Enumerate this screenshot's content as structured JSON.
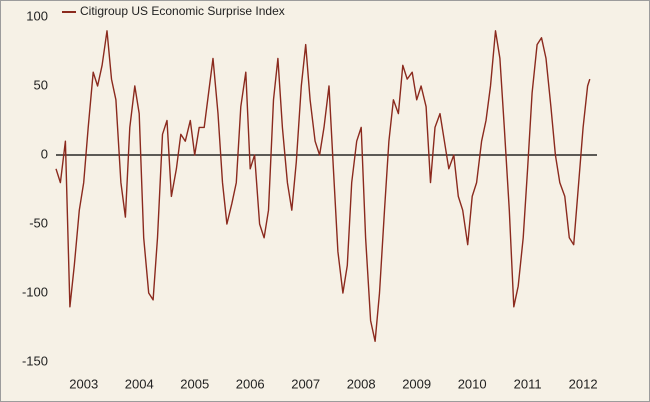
{
  "chart_data": {
    "type": "line",
    "x": [
      2003,
      2003.08,
      2003.17,
      2003.25,
      2003.33,
      2003.42,
      2003.5,
      2003.58,
      2003.67,
      2003.75,
      2003.83,
      2003.92,
      2004,
      2004.08,
      2004.17,
      2004.25,
      2004.33,
      2004.42,
      2004.5,
      2004.58,
      2004.67,
      2004.75,
      2004.83,
      2004.92,
      2005,
      2005.08,
      2005.17,
      2005.25,
      2005.33,
      2005.42,
      2005.5,
      2005.58,
      2005.67,
      2005.75,
      2005.83,
      2005.92,
      2006,
      2006.08,
      2006.17,
      2006.25,
      2006.33,
      2006.42,
      2006.5,
      2006.58,
      2006.67,
      2006.75,
      2006.83,
      2006.92,
      2007,
      2007.08,
      2007.17,
      2007.25,
      2007.33,
      2007.42,
      2007.5,
      2007.58,
      2007.67,
      2007.75,
      2007.83,
      2007.92,
      2008,
      2008.08,
      2008.17,
      2008.25,
      2008.33,
      2008.42,
      2008.5,
      2008.58,
      2008.67,
      2008.75,
      2008.83,
      2008.92,
      2009,
      2009.08,
      2009.17,
      2009.25,
      2009.33,
      2009.42,
      2009.5,
      2009.58,
      2009.67,
      2009.75,
      2009.83,
      2009.92,
      2010,
      2010.08,
      2010.17,
      2010.25,
      2010.33,
      2010.42,
      2010.5,
      2010.58,
      2010.67,
      2010.75,
      2010.83,
      2010.92,
      2011,
      2011.08,
      2011.17,
      2011.25,
      2011.33,
      2011.42,
      2011.5,
      2011.58,
      2011.67,
      2011.75,
      2011.83,
      2011.92,
      2012,
      2012.08,
      2012.17,
      2012.25,
      2012.33,
      2012.42,
      2012.5,
      2012.58,
      2012.62
    ],
    "series": [
      {
        "name": "Citigroup US Economic Surprise Index",
        "color": "#8b2a1e",
        "values": [
          -10,
          -20,
          10,
          -110,
          -80,
          -40,
          -20,
          20,
          60,
          50,
          65,
          90,
          55,
          40,
          -20,
          -45,
          20,
          50,
          30,
          -60,
          -100,
          -105,
          -60,
          15,
          25,
          -30,
          -10,
          15,
          10,
          25,
          0,
          20,
          20,
          45,
          70,
          30,
          -20,
          -50,
          -35,
          -20,
          35,
          60,
          -10,
          0,
          -50,
          -60,
          -40,
          40,
          70,
          20,
          -20,
          -40,
          -5,
          50,
          80,
          40,
          10,
          0,
          20,
          50,
          -10,
          -70,
          -100,
          -80,
          -20,
          10,
          20,
          -60,
          -120,
          -135,
          -100,
          -40,
          10,
          40,
          30,
          65,
          55,
          60,
          40,
          50,
          35,
          -20,
          20,
          30,
          10,
          -10,
          0,
          -30,
          -40,
          -65,
          -30,
          -20,
          10,
          25,
          50,
          90,
          70,
          20,
          -40,
          -110,
          -95,
          -60,
          -10,
          45,
          80,
          85,
          70,
          35,
          0,
          -20,
          -30,
          -60,
          -65,
          -20,
          20,
          50,
          55
        ]
      }
    ],
    "xlim": [
      2003,
      2012.75
    ],
    "xticks": [
      {
        "value": 2003.5,
        "label": "2003"
      },
      {
        "value": 2004.5,
        "label": "2004"
      },
      {
        "value": 2005.5,
        "label": "2005"
      },
      {
        "value": 2006.5,
        "label": "2006"
      },
      {
        "value": 2007.5,
        "label": "2007"
      },
      {
        "value": 2008.5,
        "label": "2008"
      },
      {
        "value": 2009.5,
        "label": "2009"
      },
      {
        "value": 2010.5,
        "label": "2010"
      },
      {
        "value": 2011.5,
        "label": "2011"
      },
      {
        "value": 2012.5,
        "label": "2012"
      }
    ],
    "ylim": [
      -150,
      100
    ],
    "yticks": [
      -150,
      -100,
      -50,
      0,
      50,
      100
    ],
    "legend": "top-left"
  }
}
